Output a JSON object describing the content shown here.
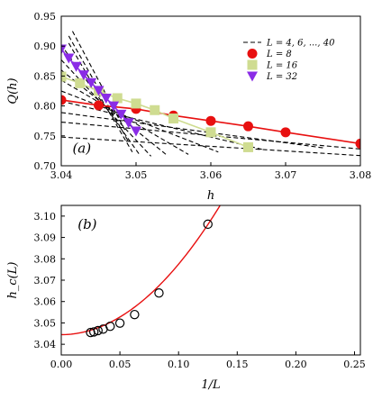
{
  "chart_data": [
    {
      "type": "line",
      "panel_label": "(a)",
      "xlabel": "h",
      "ylabel": "Q(h)",
      "xlim": [
        3.04,
        3.08
      ],
      "ylim": [
        0.7,
        0.95
      ],
      "xticks": [
        "3.04",
        "3.05",
        "3.06",
        "3.07",
        "3.08"
      ],
      "yticks": [
        "0.70",
        "0.75",
        "0.80",
        "0.85",
        "0.90",
        "0.95"
      ],
      "legend_position": "top-right",
      "legend": [
        "L = 4, 6, ..., 40",
        "L = 8",
        "L = 16",
        "L = 32"
      ],
      "series": [
        {
          "name": "L = 8",
          "marker": "circle",
          "color": "#e81010",
          "x": [
            3.04,
            3.045,
            3.05,
            3.055,
            3.06,
            3.065,
            3.07,
            3.08
          ],
          "y": [
            0.81,
            0.801,
            0.795,
            0.784,
            0.775,
            0.766,
            0.756,
            0.737
          ]
        },
        {
          "name": "L = 16",
          "marker": "square",
          "color": "#cfdc91",
          "x": [
            3.04,
            3.0425,
            3.045,
            3.0475,
            3.05,
            3.0525,
            3.055,
            3.06,
            3.065
          ],
          "y": [
            0.849,
            0.838,
            0.825,
            0.813,
            0.804,
            0.793,
            0.779,
            0.756,
            0.731
          ]
        },
        {
          "name": "L = 32",
          "marker": "triangle-down",
          "color": "#8a2ce6",
          "x": [
            3.04,
            3.041,
            3.042,
            3.043,
            3.044,
            3.045,
            3.046,
            3.047,
            3.048,
            3.049,
            3.05
          ],
          "y": [
            0.895,
            0.88,
            0.866,
            0.852,
            0.839,
            0.826,
            0.813,
            0.8,
            0.786,
            0.772,
            0.758
          ]
        }
      ],
      "dashed_fits": [
        {
          "x": [
            3.04,
            3.08
          ],
          "y": [
            0.748,
            0.717
          ]
        },
        {
          "x": [
            3.04,
            3.08
          ],
          "y": [
            0.773,
            0.728
          ]
        },
        {
          "x": [
            3.04,
            3.075
          ],
          "y": [
            0.789,
            0.73
          ]
        },
        {
          "x": [
            3.04,
            3.067
          ],
          "y": [
            0.808,
            0.727
          ]
        },
        {
          "x": [
            3.04,
            3.061
          ],
          "y": [
            0.825,
            0.723
          ]
        },
        {
          "x": [
            3.04,
            3.057
          ],
          "y": [
            0.843,
            0.719
          ]
        },
        {
          "x": [
            3.04,
            3.054
          ],
          "y": [
            0.86,
            0.719
          ]
        },
        {
          "x": [
            3.04,
            3.052
          ],
          "y": [
            0.877,
            0.716
          ]
        },
        {
          "x": [
            3.0405,
            3.0505
          ],
          "y": [
            0.893,
            0.718
          ]
        },
        {
          "x": [
            3.041,
            3.0495
          ],
          "y": [
            0.905,
            0.723
          ]
        },
        {
          "x": [
            3.041,
            3.049
          ],
          "y": [
            0.917,
            0.74
          ]
        },
        {
          "x": [
            3.0415,
            3.0485
          ],
          "y": [
            0.925,
            0.76
          ]
        }
      ]
    },
    {
      "type": "scatter",
      "panel_label": "(b)",
      "xlabel": "1/L",
      "ylabel": "h_c(L)",
      "xlim": [
        0.0,
        0.255
      ],
      "ylim": [
        3.035,
        3.105
      ],
      "xticks": [
        "0.00",
        "0.05",
        "0.10",
        "0.15",
        "0.20",
        "0.25"
      ],
      "yticks": [
        "3.04",
        "3.05",
        "3.06",
        "3.07",
        "3.08",
        "3.09",
        "3.10"
      ],
      "points": {
        "x": [
          0.025,
          0.0278,
          0.0313,
          0.0357,
          0.0417,
          0.05,
          0.0625,
          0.0833,
          0.125
        ],
        "y": [
          3.0455,
          3.0458,
          3.0464,
          3.0471,
          3.0484,
          3.0499,
          3.0539,
          3.064,
          3.0962
        ]
      },
      "fit": {
        "color": "#e81010",
        "h_inf": 3.0445,
        "a": 3.3,
        "power": 2
      }
    }
  ]
}
